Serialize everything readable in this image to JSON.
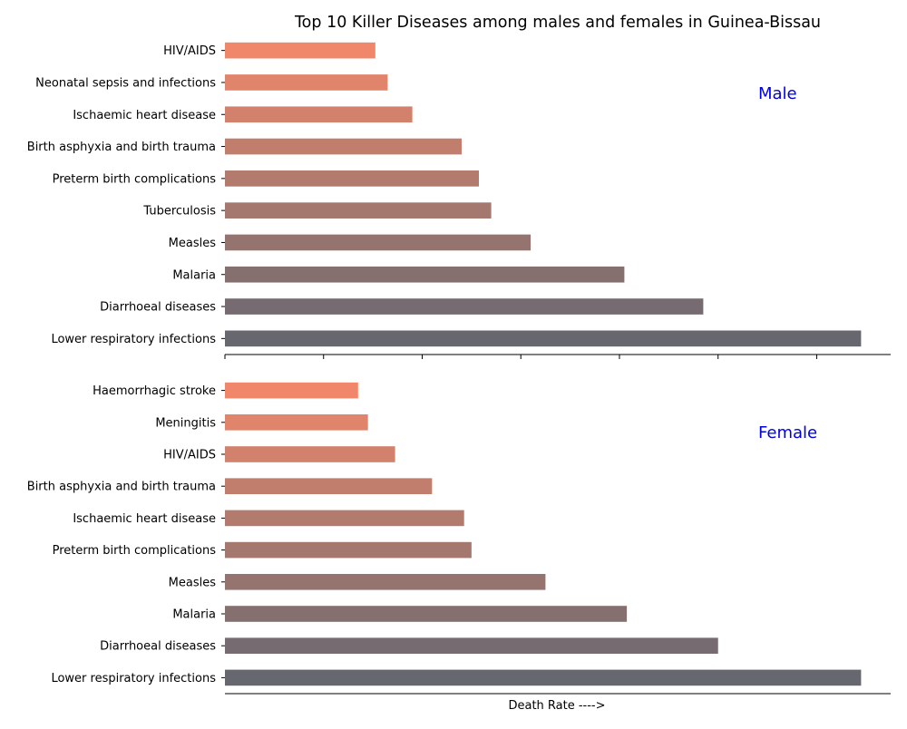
{
  "chart_data": [
    {
      "type": "bar",
      "orientation": "horizontal",
      "title": "Top 10 Killer Diseases among males and females in Guinea-Bissau",
      "panel_label": "Male",
      "panel_label_color": "#0000dd",
      "categories": [
        "Lower respiratory infections",
        "Diarrhoeal diseases",
        "Malaria",
        "Measles",
        "Tuberculosis",
        "Preterm birth complications",
        "Birth asphyxia and birth trauma",
        "Ischaemic heart disease",
        "Neonatal sepsis and infections",
        "HIV/AIDS"
      ],
      "values": [
        129,
        97,
        81,
        62,
        54,
        51.5,
        48,
        38,
        33,
        30.5
      ],
      "colors": [
        "#676770",
        "#766b70",
        "#85706f",
        "#95746f",
        "#a4786e",
        "#b37b6e",
        "#c27e6d",
        "#d1816c",
        "#e1846c",
        "#f0876b"
      ],
      "xlim": [
        0,
        135
      ],
      "x_tick_labels_shown": false,
      "grid": false
    },
    {
      "type": "bar",
      "orientation": "horizontal",
      "panel_label": "Female",
      "panel_label_color": "#0000dd",
      "xlabel": "Death Rate ---->",
      "categories": [
        "Lower respiratory infections",
        "Diarrhoeal diseases",
        "Malaria",
        "Measles",
        "Preterm birth complications",
        "Ischaemic heart disease",
        "Birth asphyxia and birth trauma",
        "HIV/AIDS",
        "Meningitis",
        "Haemorrhagic stroke"
      ],
      "values": [
        129,
        100,
        81.5,
        65,
        50,
        48.5,
        42,
        34.5,
        29,
        27
      ],
      "colors": [
        "#676770",
        "#766b70",
        "#85706f",
        "#95746f",
        "#a4786e",
        "#b37b6e",
        "#c27e6d",
        "#d1816c",
        "#e1846c",
        "#f0876b"
      ],
      "xlim": [
        0,
        135
      ],
      "x_tick_labels_shown": false,
      "grid": false
    }
  ]
}
